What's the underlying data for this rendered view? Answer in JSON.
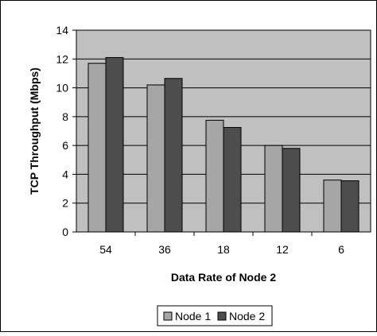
{
  "chart_data": {
    "type": "bar",
    "title": "",
    "xlabel": "Data Rate of Node 2",
    "ylabel": "TCP Throughput (Mbps)",
    "categories": [
      "54",
      "36",
      "18",
      "12",
      "6"
    ],
    "series": [
      {
        "name": "Node 1",
        "values": [
          11.7,
          10.2,
          7.75,
          6.0,
          3.6
        ]
      },
      {
        "name": "Node 2",
        "values": [
          12.1,
          10.65,
          7.25,
          5.8,
          3.55
        ]
      }
    ],
    "ylim": [
      0,
      14
    ],
    "yticks": [
      "0",
      "2",
      "4",
      "6",
      "8",
      "10",
      "12",
      "14"
    ],
    "grid": true,
    "legend_position": "bottom",
    "colors": {
      "plot_background": "#c0c0c0",
      "series": [
        "#a6a6a6",
        "#4d4d4d"
      ],
      "gridline": "#000000",
      "frame": "#000000"
    }
  }
}
